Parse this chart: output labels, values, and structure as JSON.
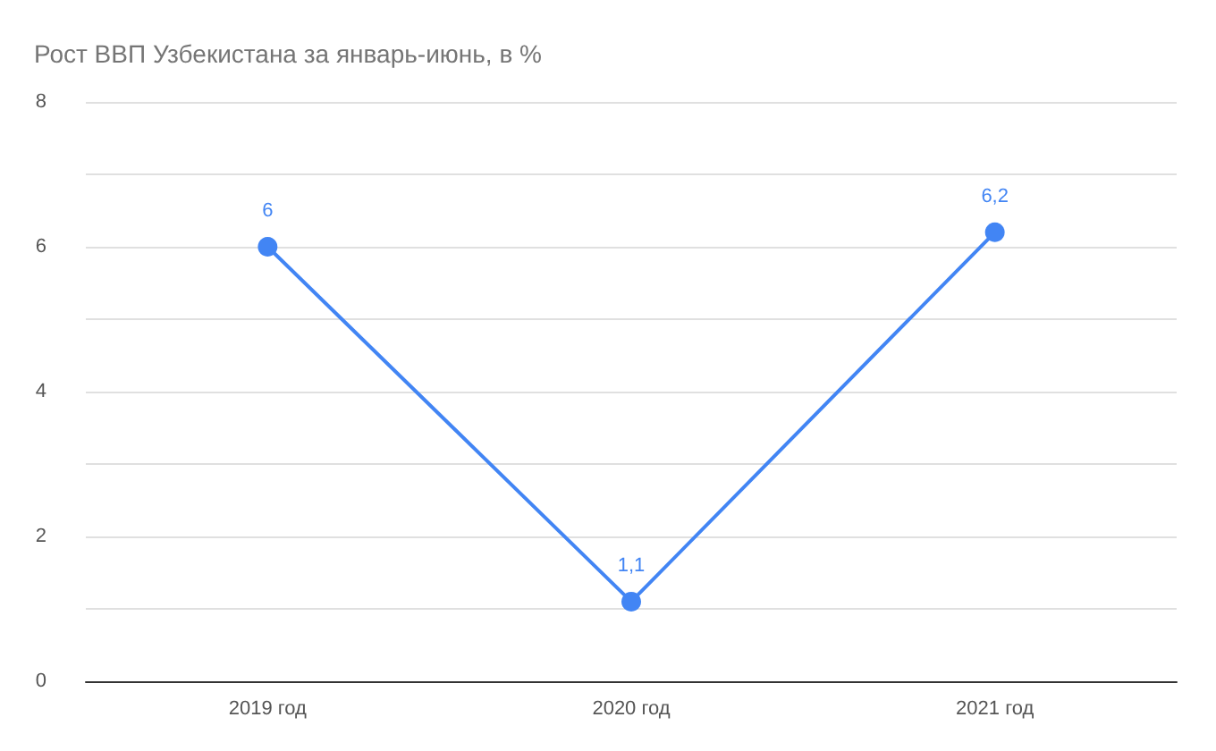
{
  "chart_data": {
    "type": "line",
    "title": "Рост ВВП Узбекистана за январь-июнь, в %",
    "categories": [
      "2019 год",
      "2020 год",
      "2021 год"
    ],
    "series": [
      {
        "color": "#4285f4",
        "values": [
          6,
          1.1,
          6.2
        ],
        "value_labels": [
          "6",
          "1,1",
          "6,2"
        ]
      }
    ],
    "ylim": [
      0,
      8
    ],
    "yticks": [
      0,
      {
        "value": 1,
        "label": null
      },
      2,
      {
        "value": 3,
        "label": null
      },
      4,
      {
        "value": 5,
        "label": null
      },
      6,
      {
        "value": 7,
        "label": null
      },
      8
    ],
    "grid": "y",
    "marker": "circle",
    "line_style": "solid"
  }
}
